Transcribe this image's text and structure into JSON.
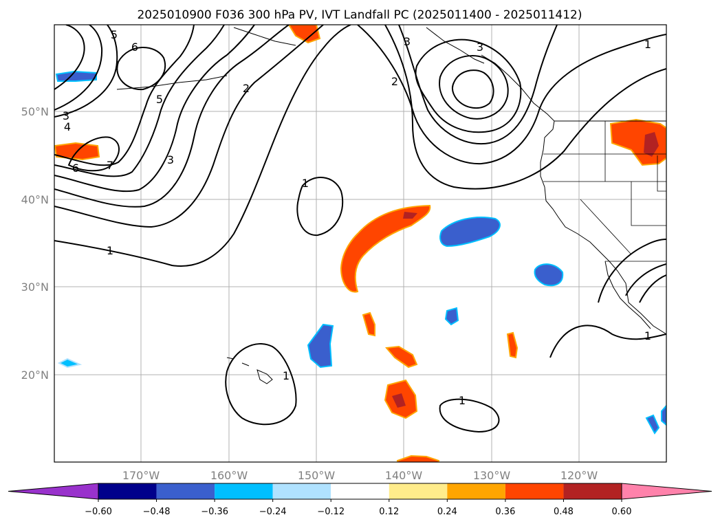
{
  "title": "2025010900 F036 300 hPa PV, IVT Landfall PC (2025011400 - 2025011412)",
  "axes": {
    "lon_ticks": [
      "170°W",
      "160°W",
      "150°W",
      "140°W",
      "130°W",
      "120°W"
    ],
    "lat_ticks": [
      "50°N",
      "40°N",
      "30°N",
      "20°N"
    ]
  },
  "colorbar": {
    "ticks": [
      "−0.60",
      "−0.48",
      "−0.36",
      "−0.24",
      "−0.12",
      "0.12",
      "0.24",
      "0.36",
      "0.48",
      "0.60"
    ],
    "colors": [
      "#9932cc",
      "#00008b",
      "#3a5fcd",
      "#00bfff",
      "#b0e2ff",
      "#ffffff",
      "#ffec8b",
      "#ffa500",
      "#ff4500",
      "#b22222",
      "#ff82ab"
    ],
    "extend": "both"
  },
  "contour_labels": {
    "pv": [
      "6",
      "5",
      "4",
      "3",
      "2",
      "1",
      "7"
    ]
  }
}
